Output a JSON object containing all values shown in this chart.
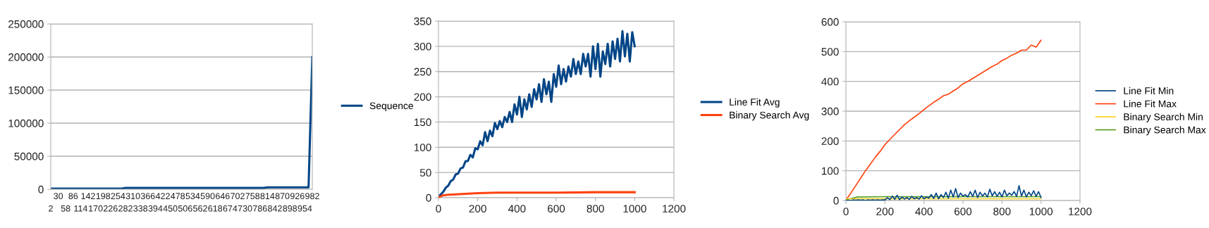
{
  "chart_data": [
    {
      "type": "line",
      "categories": [
        "2",
        null,
        "30",
        null,
        "58",
        null,
        "86",
        null,
        "114",
        null,
        "142",
        null,
        "170",
        null,
        "198",
        null,
        "226",
        null,
        "254",
        null,
        "282",
        null,
        "310",
        null,
        "338",
        null,
        "366",
        null,
        "394",
        null,
        "422",
        null,
        "450",
        null,
        "478",
        null,
        "506",
        null,
        "534",
        null,
        "562",
        null,
        "590",
        null,
        "618",
        null,
        "646",
        null,
        "674",
        null,
        "702",
        null,
        "730",
        null,
        "758",
        null,
        "786",
        null,
        "814",
        null,
        "842",
        null,
        "870",
        null,
        "898",
        null,
        "926",
        null,
        "954",
        null,
        "982"
      ],
      "series": [
        {
          "name": "Sequence",
          "color": "#004586",
          "values": [
            1000,
            1000,
            1000,
            1000,
            1000,
            1000,
            1000,
            1000,
            1000,
            1000,
            1000,
            1000,
            1000,
            1000,
            1000,
            1000,
            1000,
            1000,
            1000,
            1000,
            2000,
            2000,
            2000,
            2000,
            2000,
            2000,
            2000,
            2000,
            2000,
            2000,
            2000,
            2000,
            2000,
            2000,
            2000,
            2000,
            2000,
            2000,
            2000,
            2000,
            2000,
            2000,
            2000,
            2000,
            2000,
            2000,
            2000,
            2000,
            2000,
            2000,
            2000,
            2000,
            2000,
            2000,
            2000,
            2000,
            2000,
            2000,
            3000,
            3000,
            3000,
            3000,
            3000,
            3000,
            3000,
            3000,
            3000,
            3000,
            3000,
            3000,
            200000
          ]
        }
      ],
      "ylim": [
        0,
        250000
      ],
      "yticks": [
        0,
        50000,
        100000,
        150000,
        200000,
        250000
      ],
      "grid": "y",
      "legend": "right"
    },
    {
      "type": "line",
      "x": [
        0,
        12.5,
        25,
        37.5,
        50,
        62.5,
        75,
        87.5,
        100,
        112.5,
        125,
        137.5,
        150,
        162.5,
        175,
        187.5,
        200,
        212.5,
        225,
        237.5,
        250,
        262.5,
        275,
        287.5,
        300,
        312.5,
        325,
        337.5,
        350,
        362.5,
        375,
        387.5,
        400,
        412.5,
        425,
        437.5,
        450,
        462.5,
        475,
        487.5,
        500,
        512.5,
        525,
        537.5,
        550,
        562.5,
        575,
        587.5,
        600,
        612.5,
        625,
        637.5,
        650,
        662.5,
        675,
        687.5,
        700,
        712.5,
        725,
        737.5,
        750,
        762.5,
        775,
        787.5,
        800,
        812.5,
        825,
        837.5,
        850,
        862.5,
        875,
        887.5,
        900,
        912.5,
        925,
        937.5,
        950,
        962.5,
        975,
        987.5,
        1000
      ],
      "series": [
        {
          "name": "Line Fit Avg",
          "color": "#004586",
          "values": [
            2,
            7,
            12,
            20,
            24,
            33,
            36,
            46,
            48,
            58,
            60,
            72,
            73,
            85,
            80,
            98,
            96,
            112,
            104,
            130,
            112,
            133,
            122,
            148,
            136,
            152,
            140,
            160,
            150,
            170,
            150,
            185,
            165,
            200,
            160,
            195,
            175,
            205,
            180,
            215,
            195,
            225,
            190,
            235,
            205,
            230,
            190,
            245,
            220,
            262,
            225,
            255,
            230,
            260,
            240,
            275,
            245,
            270,
            245,
            285,
            260,
            285,
            240,
            300,
            255,
            305,
            240,
            290,
            265,
            305,
            260,
            310,
            275,
            315,
            270,
            330,
            280,
            325,
            270,
            328,
            300
          ]
        },
        {
          "name": "Binary Search Avg",
          "color": "#ff420e",
          "x": [
            0,
            25,
            50,
            100,
            200,
            300,
            400,
            600,
            800,
            1000
          ],
          "values": [
            1,
            5,
            6,
            7,
            9,
            10,
            10,
            10,
            11,
            11
          ]
        }
      ],
      "xlim": [
        0,
        1200
      ],
      "xticks": [
        0,
        200,
        400,
        600,
        800,
        1000,
        1200
      ],
      "ylim": [
        0,
        350
      ],
      "yticks": [
        0,
        50,
        100,
        150,
        200,
        250,
        300,
        350
      ],
      "grid": "y",
      "legend": "right"
    },
    {
      "type": "line",
      "x": [
        0,
        12.5,
        25,
        37.5,
        50,
        62.5,
        75,
        87.5,
        100,
        112.5,
        125,
        137.5,
        150,
        162.5,
        175,
        187.5,
        200,
        212.5,
        225,
        237.5,
        250,
        262.5,
        275,
        287.5,
        300,
        312.5,
        325,
        337.5,
        350,
        362.5,
        375,
        387.5,
        400,
        412.5,
        425,
        437.5,
        450,
        462.5,
        475,
        487.5,
        500,
        512.5,
        525,
        537.5,
        550,
        562.5,
        575,
        587.5,
        600,
        612.5,
        625,
        637.5,
        650,
        662.5,
        675,
        687.5,
        700,
        712.5,
        725,
        737.5,
        750,
        762.5,
        775,
        787.5,
        800,
        812.5,
        825,
        837.5,
        850,
        862.5,
        875,
        887.5,
        900,
        912.5,
        925,
        937.5,
        950,
        962.5,
        975,
        987.5,
        1000
      ],
      "series": [
        {
          "name": "Line Fit Min",
          "color": "#004586",
          "values": [
            0,
            1,
            0,
            2,
            1,
            2,
            1,
            2,
            0,
            2,
            1,
            2,
            1,
            2,
            1,
            2,
            2,
            10,
            3,
            15,
            4,
            18,
            3,
            12,
            5,
            10,
            4,
            14,
            6,
            10,
            5,
            16,
            6,
            12,
            8,
            20,
            7,
            25,
            6,
            20,
            10,
            28,
            8,
            35,
            12,
            40,
            10,
            25,
            15,
            20,
            12,
            30,
            14,
            35,
            10,
            28,
            15,
            25,
            12,
            38,
            16,
            30,
            14,
            28,
            12,
            35,
            16,
            25,
            18,
            30,
            14,
            50,
            15,
            35,
            12,
            28,
            16,
            33,
            14,
            30,
            10
          ]
        },
        {
          "name": "Line Fit Max",
          "color": "#ff420e",
          "x": [
            0,
            25,
            50,
            75,
            100,
            125,
            150,
            175,
            200,
            225,
            250,
            275,
            300,
            325,
            350,
            375,
            400,
            425,
            450,
            475,
            500,
            525,
            550,
            575,
            600,
            625,
            650,
            675,
            700,
            725,
            750,
            775,
            800,
            825,
            850,
            875,
            900,
            925,
            950,
            975,
            1000
          ],
          "values": [
            2,
            25,
            50,
            75,
            100,
            122,
            145,
            165,
            188,
            205,
            222,
            238,
            255,
            268,
            280,
            292,
            305,
            318,
            330,
            340,
            352,
            357,
            368,
            378,
            392,
            400,
            410,
            420,
            430,
            440,
            450,
            458,
            470,
            478,
            488,
            495,
            505,
            505,
            522,
            515,
            538
          ]
        },
        {
          "name": "Binary Search Min",
          "color": "#ffd320",
          "x": [
            0,
            100,
            1000
          ],
          "values": [
            6,
            6,
            6
          ]
        },
        {
          "name": "Binary Search Max",
          "color": "#579d1c",
          "x": [
            0,
            60,
            200,
            400,
            1000
          ],
          "values": [
            3,
            12,
            13,
            13,
            13
          ]
        }
      ],
      "xlim": [
        0,
        1200
      ],
      "xticks": [
        0,
        200,
        400,
        600,
        800,
        1000,
        1200
      ],
      "ylim": [
        0,
        600
      ],
      "yticks": [
        0,
        100,
        200,
        300,
        400,
        500,
        600
      ],
      "grid": "y",
      "legend": "right"
    }
  ]
}
